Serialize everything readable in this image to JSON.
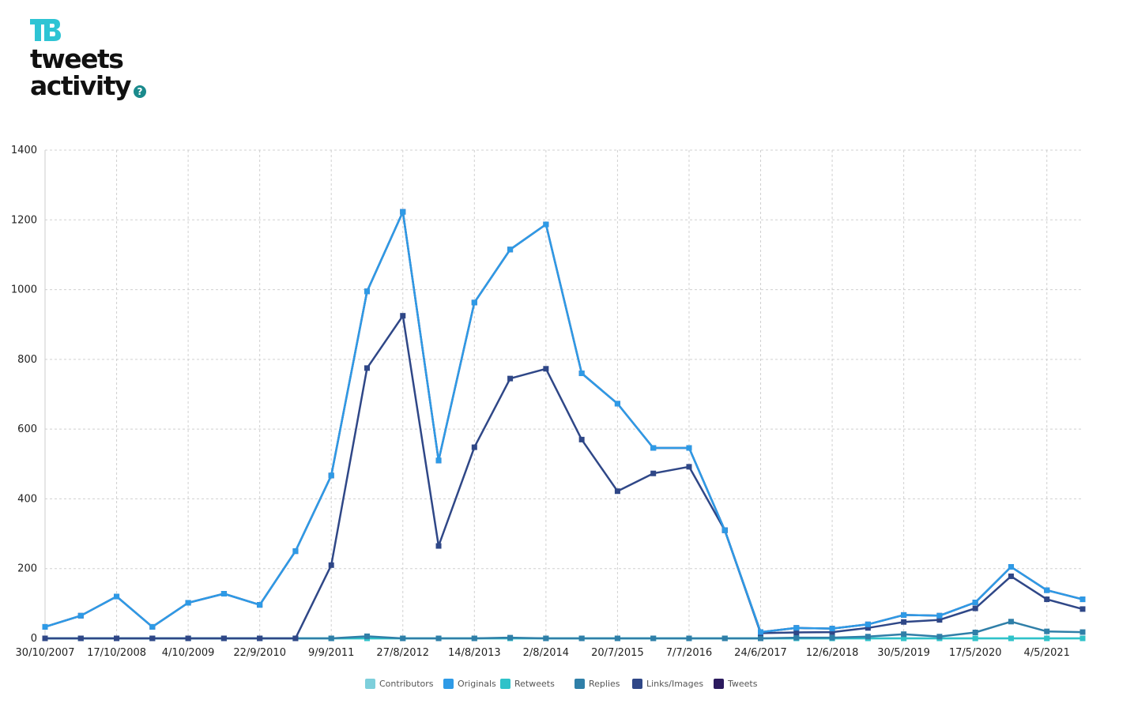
{
  "header": {
    "logo_text": "TB",
    "title_line1": "tweets",
    "title_line2": "activity",
    "help_symbol": "?",
    "logo_color": "#2ec4d4",
    "help_color": "#1a8a8c"
  },
  "chart_data": {
    "type": "line",
    "ylim": [
      0,
      1400
    ],
    "yticks": [
      0,
      200,
      400,
      600,
      800,
      1000,
      1200,
      1400
    ],
    "grid": true,
    "legend_position": "bottom-center",
    "x_tick_labels": [
      "30/10/2007",
      "17/10/2008",
      "4/10/2009",
      "22/9/2010",
      "9/9/2011",
      "27/8/2012",
      "14/8/2013",
      "2/8/2014",
      "20/7/2015",
      "7/7/2016",
      "24/6/2017",
      "12/6/2018",
      "30/5/2019",
      "17/5/2020",
      "4/5/2021"
    ],
    "series": [
      {
        "name": "Contributors",
        "color": "#7dcfdb",
        "values": [
          0,
          0,
          0,
          0,
          0,
          0,
          0,
          0,
          0,
          0,
          0,
          0,
          0,
          0,
          0,
          0,
          0,
          0,
          0,
          0,
          0,
          0,
          0,
          0,
          0,
          0,
          0,
          0,
          0,
          0
        ]
      },
      {
        "name": "Originals",
        "color": "#2e9ae6",
        "values": [
          33,
          65,
          120,
          33,
          102,
          128,
          96,
          250,
          467,
          995,
          1223,
          510,
          963,
          1115,
          1187,
          760,
          673,
          546,
          546,
          310,
          18,
          30,
          28,
          40,
          67,
          65,
          103,
          205,
          138,
          112
        ]
      },
      {
        "name": "Retweets",
        "color": "#2fc2c9",
        "values": [
          0,
          0,
          0,
          0,
          0,
          0,
          0,
          0,
          0,
          0,
          0,
          0,
          0,
          0,
          0,
          0,
          0,
          0,
          0,
          0,
          0,
          0,
          0,
          0,
          0,
          0,
          0,
          0,
          0,
          0
        ]
      },
      {
        "name": "Replies",
        "color": "#2f7fa8",
        "values": [
          0,
          0,
          0,
          0,
          0,
          0,
          0,
          0,
          0,
          6,
          0,
          0,
          0,
          2,
          0,
          0,
          0,
          0,
          0,
          0,
          0,
          2,
          2,
          5,
          12,
          5,
          17,
          48,
          20,
          18
        ]
      },
      {
        "name": "Links/Images",
        "color": "#2f4787",
        "values": [
          0,
          0,
          0,
          0,
          0,
          0,
          0,
          0,
          210,
          775,
          925,
          265,
          548,
          745,
          773,
          570,
          422,
          473,
          492,
          310,
          15,
          17,
          18,
          30,
          47,
          53,
          86,
          178,
          112,
          84
        ]
      },
      {
        "name": "Tweets",
        "color": "#2b1a5e",
        "values": [
          33,
          65,
          120,
          33,
          102,
          128,
          96,
          250,
          467,
          995,
          1223,
          510,
          963,
          1115,
          1187,
          760,
          673,
          546,
          546,
          310,
          18,
          30,
          28,
          40,
          67,
          65,
          103,
          205,
          138,
          112
        ]
      }
    ]
  }
}
